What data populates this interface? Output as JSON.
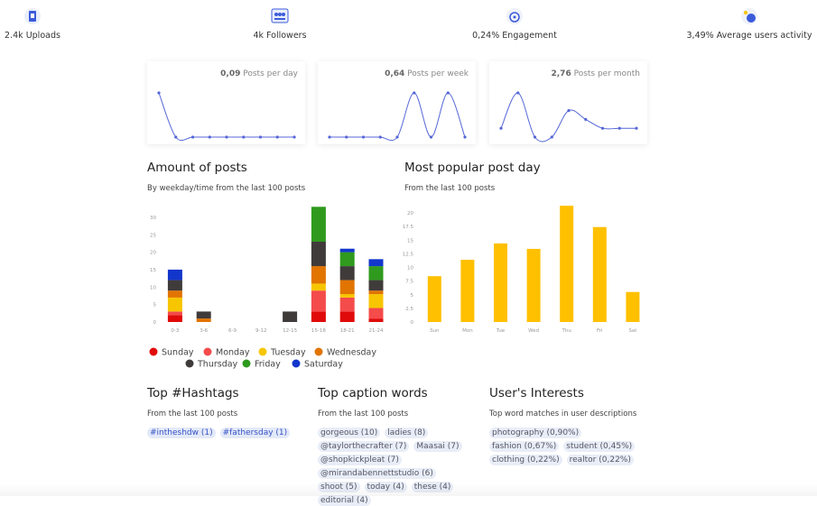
{
  "stats": [
    {
      "value": "2.4k",
      "label": "Uploads"
    },
    {
      "value": "4k",
      "label": "Followers"
    },
    {
      "value": "0,24%",
      "label": "Engagement"
    },
    {
      "value": "3,49%",
      "label": "Average users activity"
    }
  ],
  "chart_data": [
    {
      "type": "sparkline",
      "headline": "0,09",
      "title": "Posts per day",
      "color": "#5567d8",
      "values": [
        1,
        0,
        0,
        0,
        0,
        0,
        0,
        0,
        0
      ],
      "ylim": [
        0,
        1
      ]
    },
    {
      "type": "sparkline",
      "headline": "0,64",
      "title": "Posts per week",
      "color": "#5567d8",
      "values": [
        0,
        0,
        0,
        0,
        0,
        1,
        0,
        1,
        0
      ],
      "ylim": [
        0,
        1
      ]
    },
    {
      "type": "sparkline",
      "headline": "2,76",
      "title": "Posts per month",
      "color": "#5567d8",
      "values": [
        0.2,
        1,
        0,
        0,
        0.6,
        0.4,
        0.2,
        0.2,
        0.2
      ],
      "ylim": [
        0,
        1
      ]
    },
    {
      "type": "stacked_bar",
      "title": "Amount of posts",
      "subtitle": "By weekday/time from the last 100 posts",
      "categories": [
        "0-3",
        "3-6",
        "6-9",
        "9-12",
        "12-15",
        "15-18",
        "18-21",
        "21-24"
      ],
      "series": [
        {
          "name": "Sunday",
          "color": "#e00a0a",
          "values": [
            2,
            0,
            0,
            0,
            0,
            3,
            3,
            1
          ]
        },
        {
          "name": "Monday",
          "color": "#f44b4b",
          "values": [
            1,
            0,
            0,
            0,
            0,
            6,
            4,
            3
          ]
        },
        {
          "name": "Tuesday",
          "color": "#f7c600",
          "values": [
            4,
            0,
            0,
            0,
            0,
            2,
            1,
            4
          ]
        },
        {
          "name": "Wednesday",
          "color": "#e27400",
          "values": [
            2,
            1,
            0,
            0,
            0,
            5,
            4,
            1
          ]
        },
        {
          "name": "Thursday",
          "color": "#403b3b",
          "values": [
            3,
            2,
            0,
            0,
            3,
            7,
            4,
            3
          ]
        },
        {
          "name": "Friday",
          "color": "#2f9a1e",
          "values": [
            0,
            0,
            0,
            0,
            0,
            10,
            4,
            4
          ]
        },
        {
          "name": "Saturday",
          "color": "#1236cc",
          "values": [
            3,
            0,
            0,
            0,
            0,
            0,
            1,
            2
          ]
        }
      ],
      "ylim": [
        0,
        34
      ],
      "yticks": [
        0,
        5,
        10,
        15,
        20,
        25,
        30
      ]
    },
    {
      "type": "bar",
      "title": "Most popular post day",
      "subtitle": "From the last 100 posts",
      "categories": [
        "Sun",
        "Mon",
        "Tue",
        "Wed",
        "Thu",
        "Fri",
        "Sat"
      ],
      "values": [
        8.4,
        11.4,
        14.4,
        13.4,
        21.3,
        17.4,
        5.5
      ],
      "color": "#ffc000",
      "ylim": [
        0,
        22
      ],
      "yticks": [
        0,
        2.5,
        5,
        7.5,
        10,
        12.5,
        15,
        17.5,
        20
      ]
    }
  ],
  "sections": [
    {
      "title": "Top #Hashtags",
      "subtitle": "From the last 100 posts",
      "style": "hashtag",
      "items": [
        "#intheshdw (1)",
        "#fathersday (1)"
      ]
    },
    {
      "title": "Top caption words",
      "subtitle": "From the last 100 posts",
      "style": "word",
      "items": [
        "gorgeous (10)",
        "ladies (8)",
        "@taylorthecrafter (7)",
        "Maasai (7)",
        "@shopkickpleat (7)",
        "@mirandabennettstudio (6)",
        "shoot (5)",
        "today (4)",
        "these (4)",
        "editorial (4)"
      ]
    },
    {
      "title": "User's Interests",
      "subtitle": "Top word matches in user descriptions",
      "style": "word",
      "items": [
        "photography (0,90%)",
        "fashion (0,67%)",
        "student (0,45%)",
        "clothing (0,22%)",
        "realtor (0,22%)"
      ]
    }
  ]
}
